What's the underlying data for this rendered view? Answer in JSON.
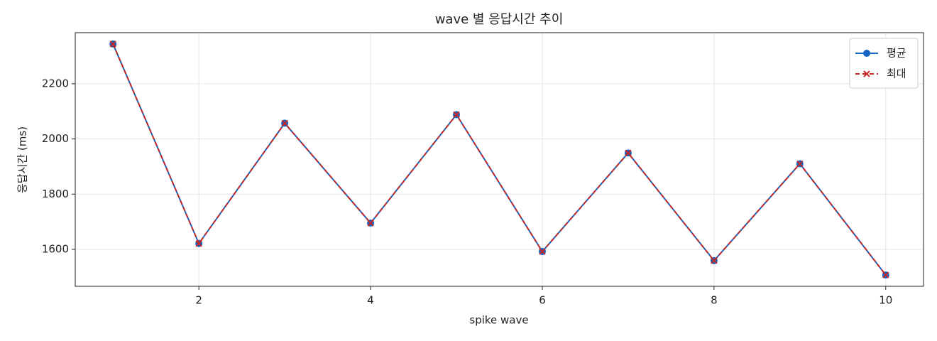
{
  "chart_data": {
    "type": "line",
    "title": "wave 별 응답시간 추이",
    "x_label": "spike wave",
    "y_label": "응답시간 (ms)",
    "x": [
      1,
      2,
      3,
      4,
      5,
      6,
      7,
      8,
      9,
      10
    ],
    "series": [
      {
        "name": "평균",
        "color": "#1565c0",
        "marker": "o",
        "dash": false,
        "values": [
          2344,
          1621,
          2057,
          1695,
          2088,
          1592,
          1949,
          1559,
          1910,
          1507
        ]
      },
      {
        "name": "최대",
        "color": "#c62828",
        "marker": "x",
        "dash": true,
        "values": [
          2344,
          1621,
          2057,
          1695,
          2088,
          1592,
          1949,
          1559,
          1910,
          1507
        ]
      }
    ],
    "xlim": [
      0.56,
      10.44
    ],
    "xticks": [
      2,
      4,
      6,
      8,
      10
    ],
    "ylim": [
      1466,
      2385
    ],
    "yticks": [
      1600,
      1800,
      2000,
      2200
    ],
    "grid": true,
    "legend": "upper right"
  }
}
